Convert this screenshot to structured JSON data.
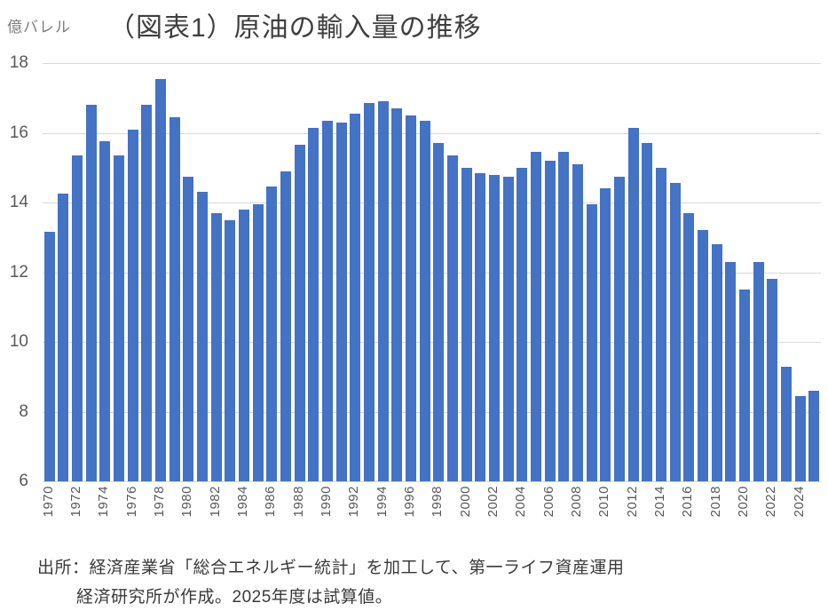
{
  "header": {
    "unit_label": "億バレル",
    "title": "（図表1）原油の輸入量の推移"
  },
  "source_note": {
    "line1": "出所：経済産業省「総合エネルギー統計」を加工して、第一ライフ資産運用",
    "line2": "経済研究所が作成。2025年度は試算値。"
  },
  "colors": {
    "bar": "#4472C4",
    "gridline": "#D9D9D9",
    "axis_text": "#595959",
    "unit_text": "#7F7F7F",
    "title_text": "#3F3F3F",
    "note_text": "#3A3A3A"
  },
  "chart_data": {
    "type": "bar",
    "title": "（図表1）原油の輸入量の推移",
    "ylabel": "億バレル",
    "xlabel": "",
    "ylim": [
      6,
      18
    ],
    "y_ticks": [
      18,
      16,
      14,
      12,
      10,
      8,
      6
    ],
    "grid": true,
    "legend": "none",
    "x_label_every": 2,
    "x_label_rotation": 90,
    "categories": [
      1970,
      1971,
      1972,
      1973,
      1974,
      1975,
      1976,
      1977,
      1978,
      1979,
      1980,
      1981,
      1982,
      1983,
      1984,
      1985,
      1986,
      1987,
      1988,
      1989,
      1990,
      1991,
      1992,
      1993,
      1994,
      1995,
      1996,
      1997,
      1998,
      1999,
      2000,
      2001,
      2002,
      2003,
      2004,
      2005,
      2006,
      2007,
      2008,
      2009,
      2010,
      2011,
      2012,
      2013,
      2014,
      2015,
      2016,
      2017,
      2018,
      2019,
      2020,
      2021,
      2022,
      2023,
      2024,
      2025
    ],
    "values": [
      13.15,
      14.25,
      15.35,
      16.8,
      15.75,
      15.35,
      16.1,
      16.8,
      17.55,
      16.45,
      14.75,
      14.3,
      13.7,
      13.5,
      13.8,
      13.95,
      14.45,
      14.9,
      15.65,
      16.15,
      16.35,
      16.3,
      16.55,
      16.85,
      16.9,
      16.7,
      16.5,
      16.35,
      15.7,
      15.35,
      15.0,
      14.85,
      14.8,
      14.75,
      15.0,
      15.45,
      15.2,
      15.45,
      15.1,
      13.95,
      14.4,
      14.75,
      16.15,
      15.7,
      15.0,
      14.55,
      13.7,
      13.2,
      12.8,
      12.3,
      11.5,
      12.3,
      11.8,
      9.3,
      8.45,
      8.6
    ]
  }
}
